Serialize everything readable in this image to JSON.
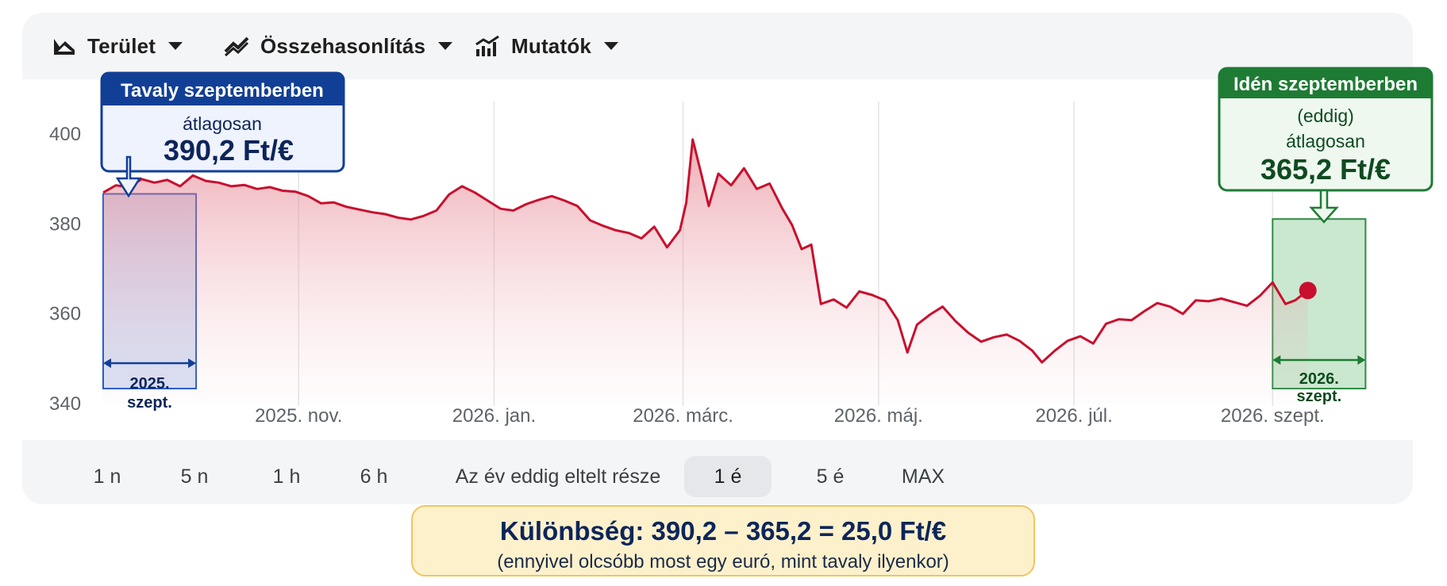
{
  "toolbar": {
    "items": [
      {
        "label": "Terület",
        "icon": "area-chart-icon"
      },
      {
        "label": "Összehasonlítás",
        "icon": "compare-icon"
      },
      {
        "label": "Mutatók",
        "icon": "indicators-icon"
      }
    ]
  },
  "ranges": {
    "items": [
      "1 n",
      "5 n",
      "1 h",
      "6 h",
      "Az év eddig eltelt része",
      "1 é",
      "5 é",
      "MAX"
    ],
    "active": "1 é"
  },
  "callouts": {
    "last_year": {
      "title": "Tavaly szeptemberben",
      "line1": "átlagosan",
      "value": "390,2 Ft/€",
      "period_line1": "2025.",
      "period_line2": "szept."
    },
    "this_year": {
      "title": "Idén szeptemberben",
      "line1": "(eddig)",
      "line2": "átlagosan",
      "value": "365,2 Ft/€",
      "period_line1": "2026.",
      "period_line2": "szept."
    }
  },
  "summary": {
    "main": "Különbség:  390,2 – 365,2  =  25,0  Ft/€",
    "sub": "(ennyivel olcsóbb most egy euró, mint tavaly ilyenkor)"
  },
  "colors": {
    "line": "#c8102e",
    "blue": "#123f96",
    "green": "#1e7b34"
  },
  "chart_data": {
    "type": "area",
    "ylim": [
      340,
      400
    ],
    "y_ticks": [
      400,
      380,
      360,
      340
    ],
    "x_tick_labels": [
      "2025. nov.",
      "2026. jan.",
      "2026. márc.",
      "2026. máj.",
      "2026. júl.",
      "2026. szept."
    ],
    "x_tick_positions": [
      "2025-11-01",
      "2026-01-01",
      "2026-03-01",
      "2026-05-01",
      "2026-07-01",
      "2026-09-01"
    ],
    "x_range": [
      "2025-09-01",
      "2026-09-20"
    ],
    "series": [
      {
        "points": [
          [
            "2025-09-01",
            386.8
          ],
          [
            "2025-09-05",
            388.4
          ],
          [
            "2025-09-09",
            388.0
          ],
          [
            "2025-09-13",
            389.8
          ],
          [
            "2025-09-17",
            389.0
          ],
          [
            "2025-09-21",
            389.6
          ],
          [
            "2025-09-25",
            388.2
          ],
          [
            "2025-09-29",
            390.6
          ],
          [
            "2025-10-03",
            389.4
          ],
          [
            "2025-10-07",
            389.0
          ],
          [
            "2025-10-11",
            388.2
          ],
          [
            "2025-10-15",
            388.5
          ],
          [
            "2025-10-19",
            387.6
          ],
          [
            "2025-10-23",
            388.0
          ],
          [
            "2025-10-27",
            387.2
          ],
          [
            "2025-10-31",
            387.0
          ],
          [
            "2025-11-04",
            386.0
          ],
          [
            "2025-11-08",
            384.4
          ],
          [
            "2025-11-12",
            384.6
          ],
          [
            "2025-11-16",
            383.6
          ],
          [
            "2025-11-20",
            383.0
          ],
          [
            "2025-11-24",
            382.4
          ],
          [
            "2025-11-28",
            382.0
          ],
          [
            "2025-12-02",
            381.2
          ],
          [
            "2025-12-06",
            380.8
          ],
          [
            "2025-12-10",
            381.6
          ],
          [
            "2025-12-14",
            382.8
          ],
          [
            "2025-12-18",
            386.4
          ],
          [
            "2025-12-22",
            388.2
          ],
          [
            "2025-12-26",
            386.8
          ],
          [
            "2025-12-30",
            385.0
          ],
          [
            "2026-01-03",
            383.2
          ],
          [
            "2026-01-07",
            382.8
          ],
          [
            "2026-01-11",
            384.2
          ],
          [
            "2026-01-15",
            385.2
          ],
          [
            "2026-01-19",
            386.0
          ],
          [
            "2026-01-23",
            385.0
          ],
          [
            "2026-01-27",
            383.8
          ],
          [
            "2026-01-31",
            380.6
          ],
          [
            "2026-02-04",
            379.4
          ],
          [
            "2026-02-08",
            378.4
          ],
          [
            "2026-02-12",
            377.8
          ],
          [
            "2026-02-16",
            376.6
          ],
          [
            "2026-02-20",
            379.2
          ],
          [
            "2026-02-24",
            374.6
          ],
          [
            "2026-02-28",
            378.4
          ],
          [
            "2026-03-02",
            384.6
          ],
          [
            "2026-03-04",
            398.6
          ],
          [
            "2026-03-07",
            390.0
          ],
          [
            "2026-03-09",
            383.8
          ],
          [
            "2026-03-12",
            391.0
          ],
          [
            "2026-03-16",
            388.4
          ],
          [
            "2026-03-20",
            392.2
          ],
          [
            "2026-03-24",
            387.6
          ],
          [
            "2026-03-28",
            388.8
          ],
          [
            "2026-04-01",
            383.2
          ],
          [
            "2026-04-04",
            379.6
          ],
          [
            "2026-04-07",
            374.2
          ],
          [
            "2026-04-10",
            375.2
          ],
          [
            "2026-04-13",
            362.0
          ],
          [
            "2026-04-17",
            363.0
          ],
          [
            "2026-04-21",
            361.2
          ],
          [
            "2026-04-25",
            364.8
          ],
          [
            "2026-04-29",
            364.0
          ],
          [
            "2026-05-03",
            362.8
          ],
          [
            "2026-05-07",
            358.4
          ],
          [
            "2026-05-10",
            351.2
          ],
          [
            "2026-05-13",
            357.4
          ],
          [
            "2026-05-17",
            359.6
          ],
          [
            "2026-05-21",
            361.4
          ],
          [
            "2026-05-25",
            358.2
          ],
          [
            "2026-05-29",
            355.6
          ],
          [
            "2026-06-02",
            353.6
          ],
          [
            "2026-06-06",
            354.6
          ],
          [
            "2026-06-10",
            355.2
          ],
          [
            "2026-06-14",
            353.8
          ],
          [
            "2026-06-18",
            351.6
          ],
          [
            "2026-06-21",
            349.0
          ],
          [
            "2026-06-25",
            351.6
          ],
          [
            "2026-06-29",
            353.8
          ],
          [
            "2026-07-03",
            354.8
          ],
          [
            "2026-07-07",
            353.2
          ],
          [
            "2026-07-11",
            357.6
          ],
          [
            "2026-07-15",
            358.6
          ],
          [
            "2026-07-19",
            358.4
          ],
          [
            "2026-07-23",
            360.4
          ],
          [
            "2026-07-27",
            362.2
          ],
          [
            "2026-07-31",
            361.4
          ],
          [
            "2026-08-04",
            359.8
          ],
          [
            "2026-08-08",
            362.8
          ],
          [
            "2026-08-12",
            362.6
          ],
          [
            "2026-08-16",
            363.2
          ],
          [
            "2026-08-20",
            362.4
          ],
          [
            "2026-08-24",
            361.6
          ],
          [
            "2026-08-28",
            363.8
          ],
          [
            "2026-09-01",
            366.8
          ],
          [
            "2026-09-05",
            362.0
          ],
          [
            "2026-09-08",
            362.8
          ],
          [
            "2026-09-12",
            365.0
          ]
        ]
      }
    ],
    "annotations": [
      {
        "period": [
          "2025-09-01",
          "2025-09-30"
        ],
        "average": 390.2
      },
      {
        "period": [
          "2026-09-01",
          "2026-09-30"
        ],
        "average": 365.2
      }
    ]
  }
}
